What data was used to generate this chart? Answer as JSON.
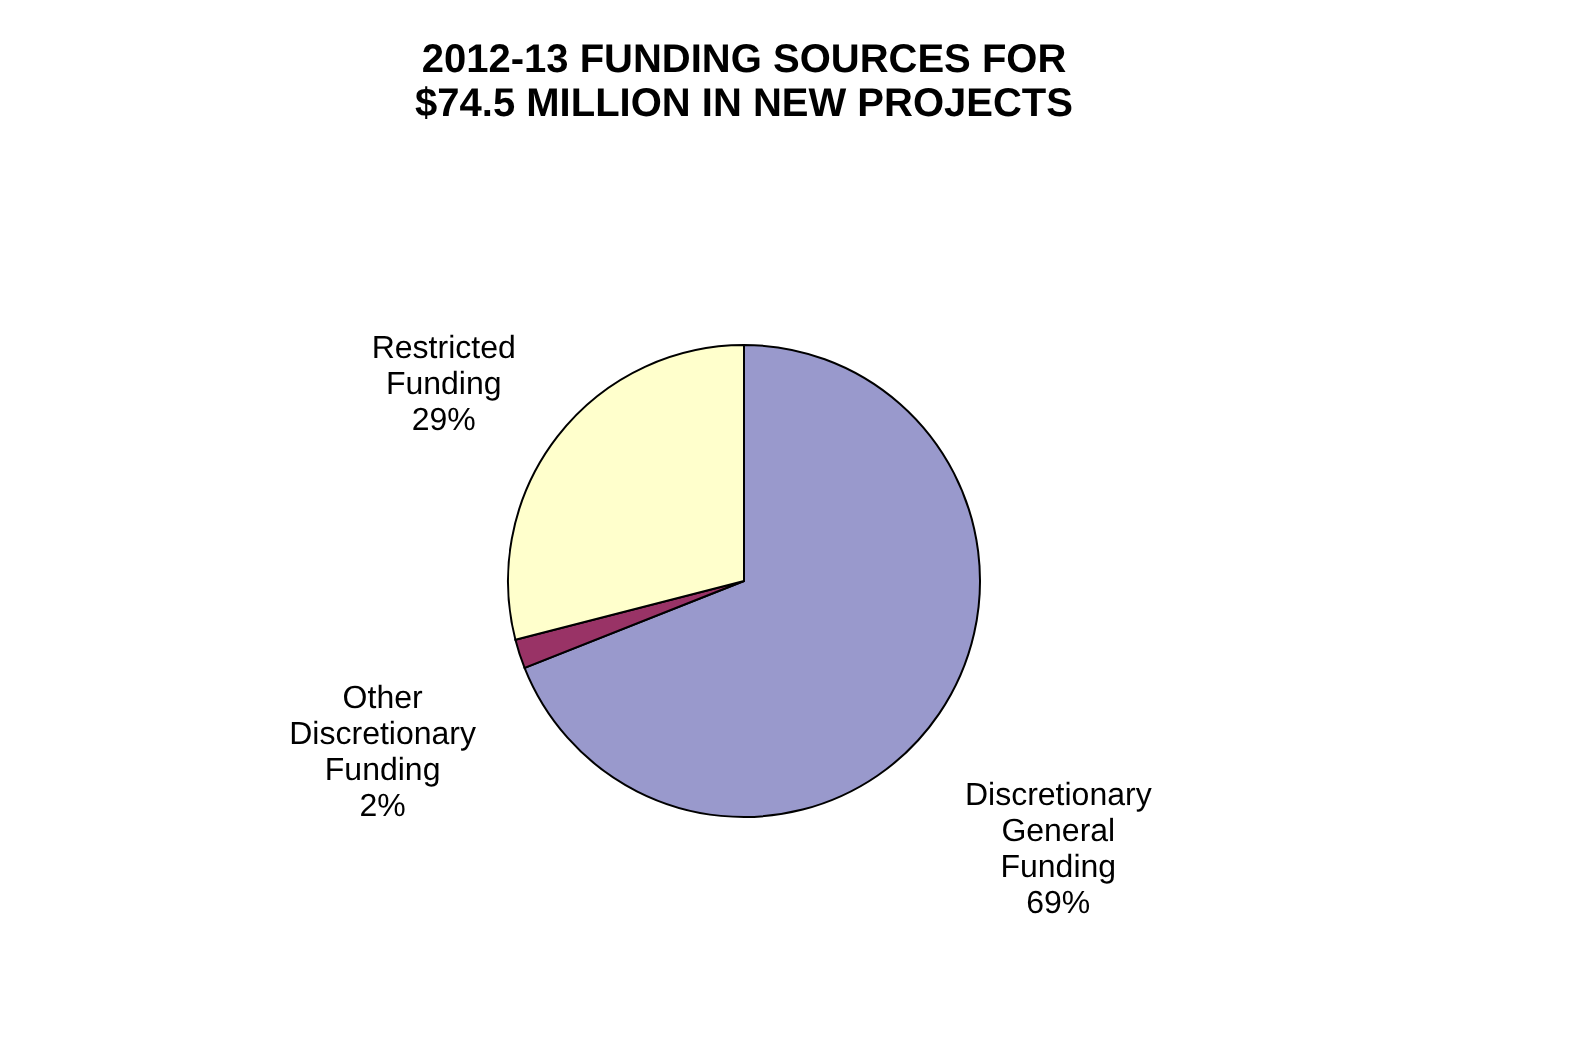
{
  "chart_data": {
    "type": "pie",
    "title": "2012-13 FUNDING SOURCES FOR $74.5 MILLION IN NEW PROJECTS",
    "categories": [
      "Discretionary General Funding",
      "Other Discretionary Funding",
      "Restricted Funding"
    ],
    "values": [
      69,
      2,
      29
    ],
    "colors": [
      "#9999cc",
      "#993366",
      "#ffffcc"
    ],
    "value_labels": [
      "69%",
      "2%",
      "29%"
    ],
    "legend": false
  }
}
